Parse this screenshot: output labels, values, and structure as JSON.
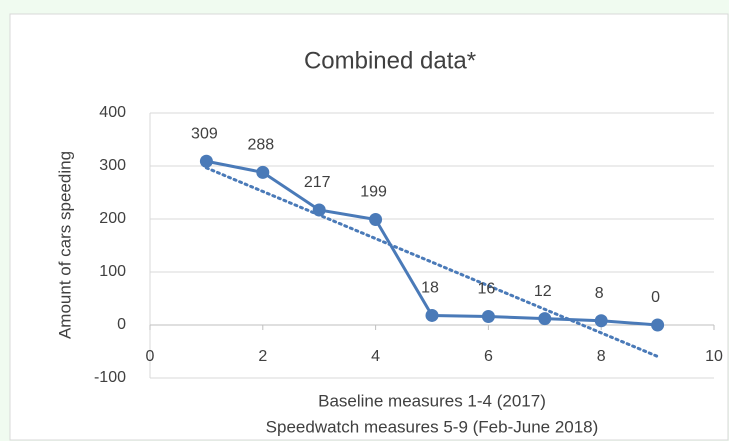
{
  "chart_data": {
    "type": "scatter-line",
    "title": "Combined data*",
    "y_label": "Amount of cars speeding",
    "x_label": [
      "Baseline measures 1-4 (2017)",
      "Speedwatch measures 5-9 (Feb-June 2018)"
    ],
    "x": [
      1,
      2,
      3,
      4,
      5,
      6,
      7,
      8,
      9
    ],
    "series": [
      {
        "name": "Combined data",
        "color": "#4a7ab8",
        "values": [
          309,
          288,
          217,
          199,
          18,
          16,
          12,
          8,
          0
        ]
      }
    ],
    "xlim": [
      0,
      10
    ],
    "xticks": [
      0,
      2,
      4,
      6,
      8,
      10
    ],
    "ylim": [
      -100,
      400
    ],
    "yticks": [
      -100,
      0,
      100,
      200,
      300,
      400
    ],
    "grid": true,
    "trendline": "linear"
  }
}
